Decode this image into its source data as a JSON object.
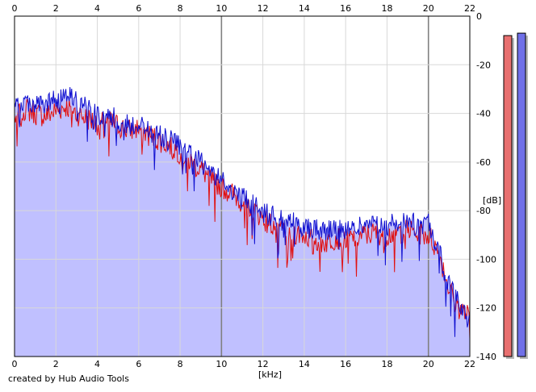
{
  "chart_data": {
    "type": "area",
    "xlabel": "[kHz]",
    "ylabel": "[dB]",
    "xlim": [
      0,
      22
    ],
    "ylim": [
      -140,
      0
    ],
    "x_ticks": [
      0,
      2,
      4,
      6,
      8,
      10,
      12,
      14,
      16,
      18,
      20,
      22
    ],
    "y_ticks": [
      0,
      -20,
      -40,
      -60,
      -80,
      -100,
      -120,
      -140
    ],
    "y_tick_labels": [
      "0",
      "-20",
      "-40",
      "-60",
      "-80",
      "-100",
      "-120",
      "-140"
    ],
    "grid": true,
    "colors": {
      "fill": "#c0c0ff",
      "channel_1": "#e01010",
      "channel_2": "#1010d0",
      "grid_minor": "#d8d8d8",
      "grid_major": "#808080",
      "meter_left": "#e87070",
      "meter_right": "#7070e8"
    },
    "series": [
      {
        "color": "red",
        "x": [
          0,
          0.5,
          1,
          1.5,
          2,
          2.5,
          3,
          3.5,
          4,
          4.5,
          5,
          5.5,
          6,
          6.5,
          7,
          7.5,
          8,
          8.5,
          9,
          9.5,
          10,
          10.5,
          11,
          11.5,
          12,
          12.5,
          13,
          13.5,
          14,
          14.5,
          15,
          15.5,
          16,
          16.5,
          17,
          17.5,
          18,
          18.5,
          19,
          19.5,
          20,
          20.5,
          21,
          21.5,
          22
        ],
        "values": [
          -42,
          -38,
          -40,
          -41,
          -39,
          -37,
          -40,
          -42,
          -44,
          -43,
          -45,
          -47,
          -46,
          -49,
          -51,
          -53,
          -56,
          -60,
          -63,
          -67,
          -70,
          -73,
          -76,
          -79,
          -83,
          -86,
          -88,
          -89,
          -90,
          -92,
          -93,
          -91,
          -92,
          -91,
          -90,
          -89,
          -90,
          -89,
          -88,
          -89,
          -90,
          -97,
          -112,
          -120,
          -124
        ]
      },
      {
        "color": "blue",
        "x": [
          0,
          0.5,
          1,
          1.5,
          2,
          2.5,
          3,
          3.5,
          4,
          4.5,
          5,
          5.5,
          6,
          6.5,
          7,
          7.5,
          8,
          8.5,
          9,
          9.5,
          10,
          10.5,
          11,
          11.5,
          12,
          12.5,
          13,
          13.5,
          14,
          14.5,
          15,
          15.5,
          16,
          16.5,
          17,
          17.5,
          18,
          18.5,
          19,
          19.5,
          20,
          20.5,
          21,
          21.5,
          22
        ],
        "values": [
          -38,
          -35,
          -36,
          -37,
          -34,
          -30,
          -35,
          -38,
          -40,
          -40,
          -42,
          -45,
          -44,
          -47,
          -49,
          -51,
          -53,
          -57,
          -60,
          -64,
          -68,
          -71,
          -74,
          -77,
          -80,
          -82,
          -84,
          -85,
          -86,
          -87,
          -88,
          -87,
          -88,
          -87,
          -86,
          -85,
          -86,
          -85,
          -84,
          -86,
          -85,
          -96,
          -111,
          -119,
          -126
        ]
      }
    ],
    "meters": {
      "left_level_db": -8,
      "right_level_db": -7
    }
  },
  "credit": "created by Hub Audio Tools"
}
